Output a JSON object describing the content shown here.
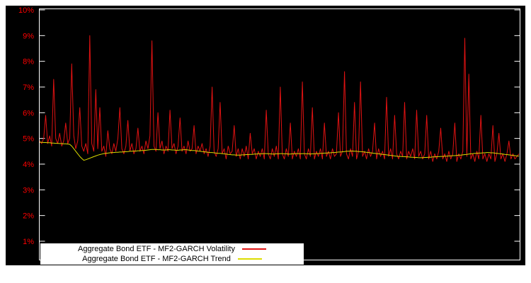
{
  "page": {
    "background": "#ffffff"
  },
  "chart_data": {
    "type": "line",
    "title": "",
    "background": "#000000",
    "border_color": "#ffffff",
    "grid": false,
    "y_axis": {
      "unit": "%",
      "label_color": "#ff0000",
      "range_top": 10.05,
      "range_bottom": 0.25,
      "ticks": [
        {
          "value": 10,
          "label": "10%"
        },
        {
          "value": 9,
          "label": "9%"
        },
        {
          "value": 8,
          "label": "8%"
        },
        {
          "value": 7,
          "label": "7%"
        },
        {
          "value": 6,
          "label": "6%"
        },
        {
          "value": 5,
          "label": "5%"
        },
        {
          "value": 4,
          "label": "4%"
        },
        {
          "value": 3,
          "label": "3%"
        },
        {
          "value": 2,
          "label": "2%"
        },
        {
          "value": 1,
          "label": "1%"
        }
      ]
    },
    "x_axis": {
      "ticks": []
    },
    "legend": {
      "position": "bottom-left",
      "background": "#ffffff",
      "text_color": "#000000"
    },
    "series": [
      {
        "name": "Aggregate Bond ETF - MF2-GARCH Volatility",
        "color": "#e01212",
        "values": [
          4.9,
          4.8,
          5.0,
          5.9,
          4.8,
          5.1,
          4.7,
          7.3,
          5.0,
          4.8,
          5.2,
          4.7,
          4.9,
          5.6,
          4.8,
          5.0,
          7.9,
          5.1,
          4.6,
          4.9,
          6.2,
          4.7,
          4.5,
          4.8,
          4.4,
          9.0,
          4.8,
          4.5,
          6.9,
          4.6,
          6.2,
          4.5,
          4.7,
          4.3,
          5.3,
          4.6,
          4.4,
          4.8,
          4.5,
          5.0,
          6.2,
          4.6,
          4.4,
          4.7,
          5.7,
          4.5,
          4.8,
          4.4,
          4.6,
          5.4,
          4.5,
          4.7,
          4.4,
          4.9,
          4.6,
          5.1,
          8.8,
          4.7,
          4.5,
          6.0,
          4.6,
          4.9,
          4.4,
          4.7,
          4.5,
          6.1,
          4.6,
          4.8,
          4.4,
          4.7,
          5.8,
          4.5,
          4.7,
          4.4,
          4.9,
          4.5,
          4.6,
          5.5,
          4.4,
          4.7,
          4.5,
          4.8,
          4.4,
          4.6,
          4.3,
          4.7,
          7.0,
          4.5,
          4.3,
          4.6,
          6.4,
          4.4,
          4.6,
          4.2,
          4.7,
          4.4,
          4.5,
          5.5,
          4.3,
          4.6,
          4.2,
          4.6,
          4.3,
          4.7,
          4.2,
          5.2,
          4.4,
          4.6,
          4.2,
          4.5,
          4.3,
          4.6,
          4.2,
          6.1,
          4.4,
          4.2,
          4.6,
          4.3,
          4.7,
          4.2,
          7.0,
          4.4,
          4.2,
          4.6,
          4.3,
          5.6,
          4.2,
          4.5,
          4.3,
          4.6,
          4.2,
          7.2,
          4.4,
          4.2,
          4.6,
          4.3,
          6.2,
          4.2,
          4.5,
          4.3,
          4.6,
          4.2,
          5.6,
          4.3,
          4.5,
          4.2,
          4.6,
          4.3,
          4.4,
          6.0,
          4.3,
          4.5,
          7.6,
          4.4,
          4.2,
          4.6,
          4.3,
          6.4,
          4.2,
          4.5,
          7.2,
          4.3,
          4.5,
          4.2,
          4.6,
          4.3,
          4.5,
          5.6,
          4.2,
          4.6,
          4.3,
          4.5,
          4.2,
          6.6,
          4.3,
          4.6,
          4.2,
          5.9,
          4.4,
          4.2,
          4.5,
          4.3,
          6.4,
          4.2,
          4.5,
          4.3,
          4.6,
          4.2,
          6.1,
          4.3,
          4.5,
          4.2,
          4.4,
          5.9,
          4.2,
          4.5,
          4.1,
          4.4,
          4.2,
          4.5,
          5.4,
          4.2,
          4.4,
          4.1,
          4.5,
          4.2,
          4.4,
          5.6,
          4.1,
          4.4,
          4.2,
          4.5,
          8.9,
          4.3,
          7.5,
          4.2,
          4.4,
          4.1,
          4.5,
          4.2,
          5.9,
          4.2,
          4.4,
          4.1,
          4.4,
          4.2,
          5.5,
          4.1,
          4.4,
          5.2,
          4.2,
          4.4,
          4.1,
          4.4,
          4.9,
          4.2,
          4.4,
          4.2,
          4.3,
          4.4
        ]
      },
      {
        "name": "Aggregate Bond ETF - MF2-GARCH Trend",
        "color": "#dcdc00",
        "values": [
          4.85,
          4.85,
          4.84,
          4.84,
          4.83,
          4.83,
          4.82,
          4.82,
          4.81,
          4.81,
          4.8,
          4.8,
          4.79,
          4.79,
          4.78,
          4.77,
          4.7,
          4.6,
          4.5,
          4.4,
          4.3,
          4.22,
          4.15,
          4.17,
          4.2,
          4.23,
          4.26,
          4.29,
          4.32,
          4.35,
          4.37,
          4.39,
          4.41,
          4.42,
          4.43,
          4.44,
          4.45,
          4.45,
          4.46,
          4.46,
          4.47,
          4.47,
          4.48,
          4.48,
          4.49,
          4.5,
          4.5,
          4.51,
          4.51,
          4.52,
          4.52,
          4.53,
          4.53,
          4.54,
          4.55,
          4.56,
          4.57,
          4.57,
          4.57,
          4.56,
          4.56,
          4.55,
          4.55,
          4.55,
          4.56,
          4.56,
          4.55,
          4.55,
          4.54,
          4.54,
          4.55,
          4.55,
          4.56,
          4.56,
          4.55,
          4.54,
          4.53,
          4.53,
          4.52,
          4.51,
          4.5,
          4.49,
          4.48,
          4.47,
          4.46,
          4.45,
          4.45,
          4.44,
          4.43,
          4.42,
          4.42,
          4.41,
          4.4,
          4.39,
          4.38,
          4.37,
          4.36,
          4.36,
          4.35,
          4.35,
          4.35,
          4.36,
          4.36,
          4.37,
          4.37,
          4.38,
          4.38,
          4.39,
          4.39,
          4.4,
          4.4,
          4.4,
          4.41,
          4.41,
          4.4,
          4.4,
          4.39,
          4.39,
          4.4,
          4.4,
          4.41,
          4.41,
          4.4,
          4.4,
          4.39,
          4.39,
          4.4,
          4.4,
          4.41,
          4.41,
          4.4,
          4.41,
          4.41,
          4.4,
          4.4,
          4.39,
          4.4,
          4.4,
          4.41,
          4.41,
          4.42,
          4.42,
          4.43,
          4.43,
          4.44,
          4.44,
          4.45,
          4.45,
          4.46,
          4.47,
          4.47,
          4.48,
          4.49,
          4.5,
          4.5,
          4.51,
          4.51,
          4.5,
          4.5,
          4.49,
          4.49,
          4.48,
          4.47,
          4.46,
          4.45,
          4.44,
          4.43,
          4.42,
          4.41,
          4.4,
          4.39,
          4.38,
          4.37,
          4.36,
          4.35,
          4.34,
          4.33,
          4.32,
          4.31,
          4.3,
          4.3,
          4.29,
          4.29,
          4.28,
          4.28,
          4.27,
          4.27,
          4.26,
          4.26,
          4.25,
          4.25,
          4.25,
          4.26,
          4.26,
          4.27,
          4.27,
          4.28,
          4.28,
          4.29,
          4.29,
          4.3,
          4.3,
          4.31,
          4.31,
          4.32,
          4.32,
          4.33,
          4.33,
          4.34,
          4.35,
          4.35,
          4.36,
          4.37,
          4.38,
          4.39,
          4.4,
          4.41,
          4.42,
          4.42,
          4.43,
          4.43,
          4.44,
          4.44,
          4.45,
          4.45,
          4.44,
          4.44,
          4.43,
          4.42,
          4.41,
          4.4,
          4.39,
          4.38,
          4.37,
          4.36,
          4.35,
          4.34,
          4.33,
          4.32,
          4.31
        ]
      }
    ]
  }
}
